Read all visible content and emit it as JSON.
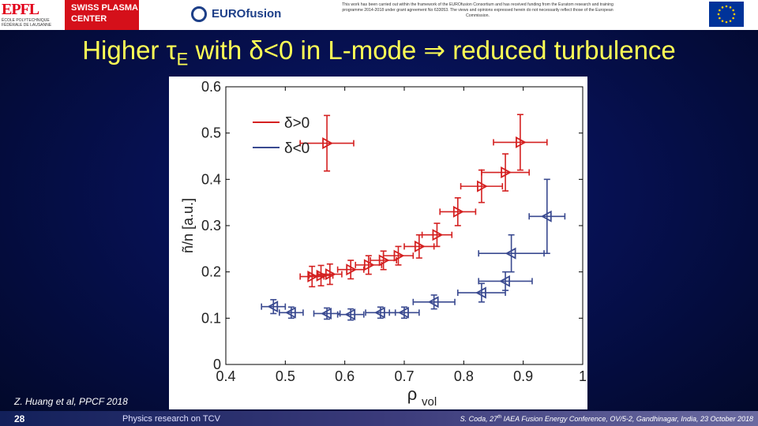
{
  "header": {
    "epfl_logo": "EPFL",
    "epfl_sub": "ÉCOLE POLYTECHNIQUE\nFÉDÉRALE DE LAUSANNE",
    "spc_text": "SWISS PLASMA\nCENTER",
    "eurofusion_label": "EUROfusion",
    "disclaimer": "This work has been carried out within the framework of the EUROfusion Consortium and has received funding from the Euratom research and training programme 2014-2018 under grant agreement No 633053. The views and opinions expressed herein do not necessarily reflect those of the European Commission."
  },
  "slide": {
    "title_pre": "Higher ",
    "title_tau": "τ",
    "title_sub": "E",
    "title_post": " with δ<0 in L-mode ⇒ reduced turbulence",
    "citation": "Z. Huang et al, PPCF 2018",
    "page_number": "28",
    "footer_center": "Physics research on TCV",
    "footer_right_pre": "S. Coda, 27",
    "footer_right_sup": "th",
    "footer_right_post": " IAEA Fusion Energy Conference, OV/5-2, Gandhinagar, India, 23 October 2018"
  },
  "colors": {
    "red": "#d42020",
    "blue": "#3a4a90",
    "title": "#ffff55"
  },
  "chart_data": {
    "type": "scatter",
    "xlabel": "ρ",
    "xlabel_sub": "vol",
    "ylabel": "ñ/n [a.u.]",
    "xlim": [
      0.4,
      1.0
    ],
    "ylim": [
      0,
      0.6
    ],
    "xticks": [
      "0.4",
      "0.5",
      "0.6",
      "0.7",
      "0.8",
      "0.9",
      "1"
    ],
    "yticks": [
      "0",
      "0.1",
      "0.2",
      "0.3",
      "0.4",
      "0.5",
      "0.6"
    ],
    "legend_position": "top-left",
    "series": [
      {
        "name": "δ>0",
        "color": "#d42020",
        "marker": "triangle-right",
        "points": [
          {
            "x": 0.57,
            "y": 0.478,
            "xerr": 0.045,
            "yerr": 0.06
          },
          {
            "x": 0.545,
            "y": 0.19,
            "xerr": 0.02,
            "yerr": 0.022
          },
          {
            "x": 0.56,
            "y": 0.192,
            "xerr": 0.02,
            "yerr": 0.022
          },
          {
            "x": 0.575,
            "y": 0.195,
            "xerr": 0.02,
            "yerr": 0.022
          },
          {
            "x": 0.61,
            "y": 0.205,
            "xerr": 0.022,
            "yerr": 0.02
          },
          {
            "x": 0.64,
            "y": 0.215,
            "xerr": 0.022,
            "yerr": 0.02
          },
          {
            "x": 0.665,
            "y": 0.225,
            "xerr": 0.022,
            "yerr": 0.02
          },
          {
            "x": 0.69,
            "y": 0.235,
            "xerr": 0.025,
            "yerr": 0.02
          },
          {
            "x": 0.725,
            "y": 0.255,
            "xerr": 0.025,
            "yerr": 0.025
          },
          {
            "x": 0.755,
            "y": 0.28,
            "xerr": 0.025,
            "yerr": 0.025
          },
          {
            "x": 0.79,
            "y": 0.33,
            "xerr": 0.03,
            "yerr": 0.03
          },
          {
            "x": 0.83,
            "y": 0.385,
            "xerr": 0.035,
            "yerr": 0.035
          },
          {
            "x": 0.87,
            "y": 0.415,
            "xerr": 0.04,
            "yerr": 0.04
          },
          {
            "x": 0.895,
            "y": 0.48,
            "xerr": 0.045,
            "yerr": 0.06
          }
        ]
      },
      {
        "name": "δ<0",
        "color": "#3a4a90",
        "marker": "triangle-left",
        "points": [
          {
            "x": 0.48,
            "y": 0.125,
            "xerr": 0.02,
            "yerr": 0.015
          },
          {
            "x": 0.51,
            "y": 0.112,
            "xerr": 0.02,
            "yerr": 0.012
          },
          {
            "x": 0.57,
            "y": 0.11,
            "xerr": 0.022,
            "yerr": 0.012
          },
          {
            "x": 0.61,
            "y": 0.108,
            "xerr": 0.022,
            "yerr": 0.012
          },
          {
            "x": 0.66,
            "y": 0.112,
            "xerr": 0.025,
            "yerr": 0.012
          },
          {
            "x": 0.7,
            "y": 0.112,
            "xerr": 0.025,
            "yerr": 0.012
          },
          {
            "x": 0.75,
            "y": 0.135,
            "xerr": 0.035,
            "yerr": 0.015
          },
          {
            "x": 0.83,
            "y": 0.155,
            "xerr": 0.04,
            "yerr": 0.02
          },
          {
            "x": 0.87,
            "y": 0.18,
            "xerr": 0.045,
            "yerr": 0.02
          },
          {
            "x": 0.88,
            "y": 0.24,
            "xerr": 0.055,
            "yerr": 0.04
          },
          {
            "x": 0.94,
            "y": 0.32,
            "xerr": 0.03,
            "yerr": 0.08
          }
        ]
      }
    ]
  }
}
